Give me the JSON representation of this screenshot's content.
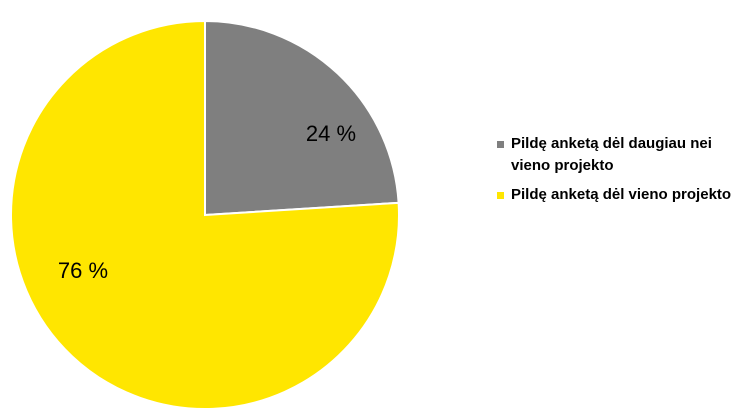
{
  "chart_data": {
    "type": "pie",
    "title": "",
    "start_angle_deg": 0,
    "direction": "clockwise",
    "slices": [
      {
        "label": "Pildę anketą dėl daugiau nei vieno projekto",
        "value": 24,
        "display": "24 %",
        "color": "#7f7f7f"
      },
      {
        "label": "Pildę anketą dėl vieno projekto",
        "value": 76,
        "display": "76 %",
        "color": "#ffe600"
      }
    ],
    "legend": {
      "position": "right"
    }
  }
}
